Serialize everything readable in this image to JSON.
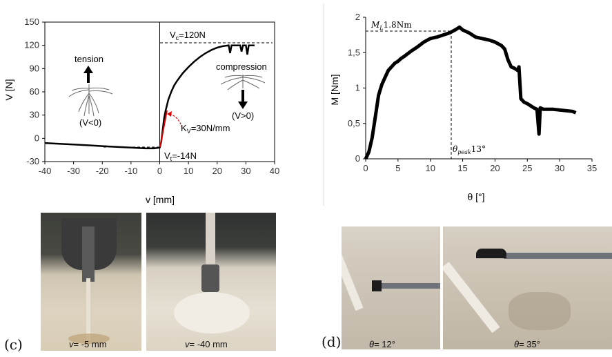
{
  "chart_data": [
    {
      "type": "line",
      "xlabel": "v [mm]",
      "ylabel": "V [N]",
      "xlim": [
        -40,
        40
      ],
      "ylim": [
        -30,
        150
      ],
      "x_ticks": [
        "-40",
        "-30",
        "-20",
        "-10",
        "0",
        "10",
        "20",
        "30",
        "40"
      ],
      "y_ticks": [
        "-30",
        "0",
        "30",
        "60",
        "90",
        "120",
        "150"
      ],
      "grid": false,
      "series": [
        {
          "x": [
            -40,
            -35,
            -30,
            -25,
            -20,
            -15,
            -10,
            -5,
            -2,
            0,
            0.5,
            1,
            1.5,
            2,
            3,
            4,
            5,
            6,
            8,
            10,
            12,
            14,
            16,
            18,
            20,
            22,
            24,
            24.5,
            25,
            25.5,
            26,
            28,
            28.5,
            29,
            29.5,
            30,
            30.5,
            31,
            31.5,
            32,
            33
          ],
          "y": [
            -6,
            -7,
            -8,
            -9,
            -10,
            -11,
            -12,
            -13,
            -13,
            -12,
            -5,
            10,
            25,
            35,
            50,
            60,
            68,
            74,
            84,
            92,
            99,
            105,
            110,
            114,
            117,
            119,
            120,
            110,
            120,
            120,
            120,
            120,
            112,
            120,
            120,
            120,
            108,
            120,
            120,
            120,
            120
          ]
        }
      ],
      "annotations": {
        "vc": "V",
        "vc_sub": "c",
        "vc_value": "=120N",
        "vt": "V",
        "vt_sub": "t",
        "vt_value": "=-14N",
        "kv": "K",
        "kv_sub": "V",
        "kv_value": "=30N/mm",
        "tension": "tension",
        "compression": "compression",
        "v_neg": "(V<0)",
        "v_pos": "(V>0)"
      }
    },
    {
      "type": "scatter",
      "xlabel": "θ [°]",
      "ylabel": "M [Nm]",
      "xlim": [
        0,
        35
      ],
      "ylim": [
        0,
        2
      ],
      "x_ticks": [
        "0",
        "5",
        "10",
        "15",
        "20",
        "25",
        "30",
        "35"
      ],
      "y_ticks": [
        "0",
        "0,5",
        "1",
        "1,5",
        "2"
      ],
      "grid": false,
      "series": [
        {
          "x": [
            0,
            0.5,
            1,
            1.5,
            2,
            2.5,
            3,
            3.5,
            4,
            4.5,
            5,
            5.5,
            6,
            7,
            8,
            9,
            10,
            11,
            12,
            13,
            14,
            14.5,
            15,
            16,
            17,
            18,
            19,
            20,
            21,
            21.5,
            22,
            22.5,
            23,
            23.5,
            23.7,
            24,
            24.5,
            25,
            25.5,
            26,
            26.5,
            26.8,
            27,
            27.5,
            28,
            29,
            30,
            31,
            32,
            32.5
          ],
          "y": [
            0,
            0.1,
            0.3,
            0.6,
            0.9,
            1.05,
            1.15,
            1.25,
            1.3,
            1.35,
            1.38,
            1.42,
            1.45,
            1.52,
            1.58,
            1.65,
            1.7,
            1.72,
            1.75,
            1.78,
            1.83,
            1.86,
            1.82,
            1.78,
            1.72,
            1.7,
            1.68,
            1.65,
            1.6,
            1.55,
            1.4,
            1.3,
            1.28,
            1.25,
            1.3,
            0.85,
            0.8,
            0.78,
            0.75,
            0.72,
            0.7,
            0.35,
            0.72,
            0.7,
            0.7,
            0.7,
            0.69,
            0.68,
            0.67,
            0.65
          ]
        }
      ],
      "annotations": {
        "ml": "M",
        "ml_sub": "L",
        "ml_value": "1.8Nm",
        "theta_peak": "θ",
        "theta_peak_sub": "peak",
        "theta_peak_value": "13°"
      }
    }
  ],
  "photos": {
    "label_c": "(c)",
    "label_d": "(d)",
    "caption_c1_var": "v",
    "caption_c1_val": "= -5 mm",
    "caption_c2_var": "v",
    "caption_c2_val": "= -40 mm",
    "caption_d1_var": "θ",
    "caption_d1_val": "= 12°",
    "caption_d2_var": "θ",
    "caption_d2_val": "= 35°"
  }
}
